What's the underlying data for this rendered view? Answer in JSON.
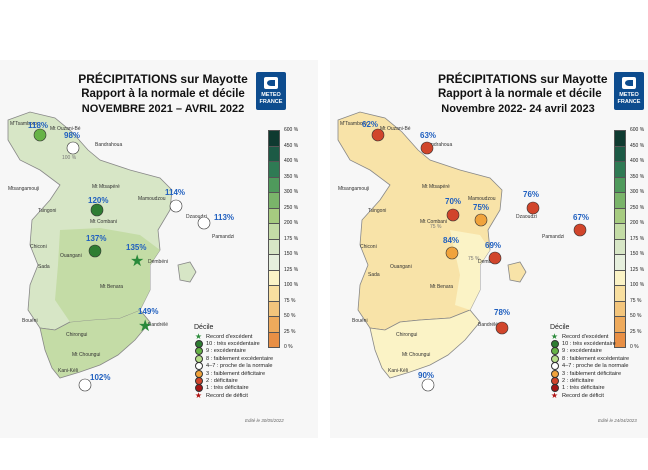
{
  "colors": {
    "scale": [
      "#0f3a30",
      "#1c5a45",
      "#2f7a54",
      "#4f9a5c",
      "#7ab46a",
      "#a6cb80",
      "#c4dca6",
      "#d7e6c6",
      "#e6efdd",
      "#fbf3c6",
      "#f8dfa0",
      "#f3c57c",
      "#eeaa5c",
      "#e88f45"
    ],
    "dot_record_excedent": "#2a8a3a",
    "dot_10": "#2e7d32",
    "dot_9": "#66b346",
    "dot_8": "#b7df8a",
    "dot_4_7": "#ffffff",
    "dot_3": "#f0a33c",
    "dot_2": "#d1452b",
    "dot_1": "#a51414",
    "star_deficit": "#b01010"
  },
  "panels": [
    {
      "title_line1": "PRÉCIPITATIONS sur Mayotte",
      "title_line2": "Rapport à la normale et décile",
      "title_line3": "NOVEMBRE 2021 – AVRIL 2022",
      "logo_text": "METEO FRANCE",
      "edit_note": "Edité le 30/05/2022",
      "places": [
        "M'Tsamboro",
        "Mt Ouzani-Bé",
        "Bandrahoua",
        "Mtsangamouji",
        "Tsingoni",
        "Mt Mtsapéré",
        "Mamoudzou",
        "Mt Combani",
        "Dzaoudzi",
        "Pamandzi",
        "Chiconi",
        "Ouangani",
        "Sada",
        "Dembéni",
        "Mt Benara",
        "Bouéni",
        "Chirongui",
        "Bandrélé",
        "Mt Choungui",
        "Kani-Kéli"
      ],
      "iso_label": "100 %",
      "stations": [
        {
          "value": "118%",
          "decile": "9"
        },
        {
          "value": "98%",
          "decile": "4-7"
        },
        {
          "value": "120%",
          "decile": "10"
        },
        {
          "value": "114%",
          "decile": "4-7"
        },
        {
          "value": "113%",
          "decile": "4-7"
        },
        {
          "value": "137%",
          "decile": "10"
        },
        {
          "value": "135%",
          "decile": "record"
        },
        {
          "value": "149%",
          "decile": "record"
        },
        {
          "value": "102%",
          "decile": "4-7"
        }
      ]
    },
    {
      "title_line1": "PRÉCIPITATIONS sur Mayotte",
      "title_line2": "Rapport à la normale et décile",
      "title_line3": "Novembre 2022- 24 avril 2023",
      "logo_text": "METEO FRANCE",
      "edit_note": "Edité le 24/04/2023",
      "places": [
        "M'Tsamboro",
        "Mt Ouzani-Bé",
        "Bandrahoua",
        "Mtsangamouji",
        "Tsingoni",
        "Mt Mtsapéré",
        "Mamoudzou",
        "Mt Combani",
        "Dzaoudzi",
        "Pamandzi",
        "Chiconi",
        "Ouangani",
        "Sada",
        "Dembéni",
        "Mt Benara",
        "Bouéni",
        "Chirongui",
        "Bandrélé",
        "Mt Choungui",
        "Kani-Kéli"
      ],
      "iso_label_a": "75 %",
      "iso_label_b": "75 %",
      "stations": [
        {
          "value": "62%",
          "decile": "2"
        },
        {
          "value": "63%",
          "decile": "2"
        },
        {
          "value": "70%",
          "decile": "2"
        },
        {
          "value": "75%",
          "decile": "3"
        },
        {
          "value": "76%",
          "decile": "2"
        },
        {
          "value": "67%",
          "decile": "2"
        },
        {
          "value": "84%",
          "decile": "3"
        },
        {
          "value": "69%",
          "decile": "2"
        },
        {
          "value": "78%",
          "decile": "2"
        },
        {
          "value": "90%",
          "decile": "4-7"
        }
      ]
    }
  ],
  "scale_labels": [
    "600 %",
    "450 %",
    "400 %",
    "350 %",
    "300 %",
    "250 %",
    "200 %",
    "175 %",
    "150 %",
    "125 %",
    "100 %",
    "75 %",
    "50 %",
    "25 %",
    "0 %"
  ],
  "legend": {
    "title": "Décile",
    "items": [
      "Record d'excédent",
      "10 : très excédentaire",
      "9 : excédentaire",
      "8 : faiblement excédentaire",
      "4–7 : proche de la normale",
      "3 : faiblement déficitaire",
      "2 : déficitaire",
      "1 : très déficitaire",
      "Record de déficit"
    ]
  }
}
